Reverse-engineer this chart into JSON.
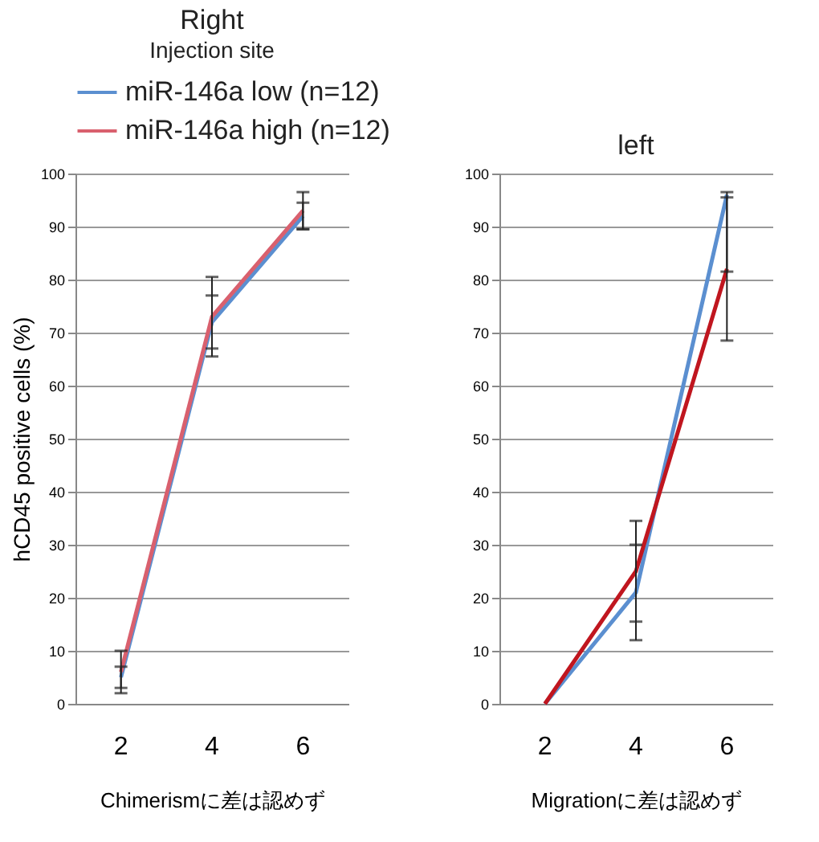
{
  "chart_data": [
    {
      "type": "line",
      "title": "Right",
      "subtitle": "Injection site",
      "ylabel": "hCD45 positive cells (%)",
      "xlabel": "Chimerismに差は認めず",
      "categories": [
        "2",
        "4",
        "6"
      ],
      "series": [
        {
          "name": "miR-146a low  (n=12)",
          "color": "#5b8fd0",
          "values": [
            5,
            72,
            92
          ],
          "errors": [
            2,
            5,
            2.5
          ]
        },
        {
          "name": "miR-146a high  (n=12)",
          "color": "#d9606e",
          "values": [
            6,
            73,
            93
          ],
          "errors": [
            4,
            7.5,
            3.5
          ]
        }
      ],
      "ylim": [
        0,
        100
      ],
      "yticks": [
        0,
        10,
        20,
        30,
        40,
        50,
        60,
        70,
        80,
        90,
        100
      ],
      "grid": "y",
      "legend": "top",
      "line_style": "solid"
    },
    {
      "type": "line",
      "title": "left",
      "xlabel": "Migrationに差は認めず",
      "categories": [
        "2",
        "4",
        "6"
      ],
      "series": [
        {
          "color": "#5b8fd0",
          "values": [
            0,
            21,
            96
          ],
          "errors": [
            null,
            9,
            [
              81.5,
              96.5
            ]
          ]
        },
        {
          "color": "#c0161f",
          "values": [
            0,
            25,
            82
          ],
          "errors": [
            null,
            9.5,
            13.5
          ]
        }
      ],
      "ylim": [
        0,
        100
      ],
      "yticks": [
        0,
        10,
        20,
        30,
        40,
        50,
        60,
        70,
        80,
        90,
        100
      ],
      "grid": "y",
      "line_style": "solid"
    }
  ]
}
